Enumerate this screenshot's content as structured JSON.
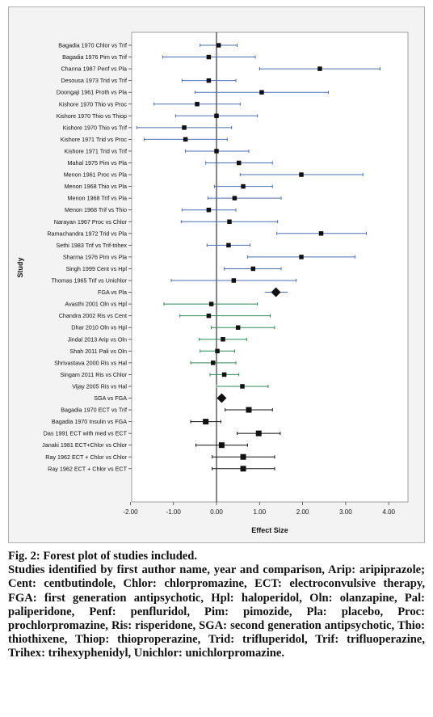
{
  "chart_data": {
    "type": "forest",
    "xlabel": "Effect Size",
    "ylabel": "Study",
    "xlim": [
      -2.2,
      4.45
    ],
    "xticks": [
      -2,
      -1,
      0,
      1,
      2,
      3,
      4
    ],
    "xtick_labels": [
      "-2.00",
      "-1.00",
      "0.00",
      "1.00",
      "2.00",
      "3.00",
      "4.00"
    ],
    "colors": {
      "fga": "#4a6fb5",
      "sga": "#2e8b57",
      "ect": "#111111",
      "marker": "#111111"
    },
    "studies": [
      {
        "label": "Bagadia 1970 Chlor vs Trif",
        "est": 0.05,
        "lo": -0.38,
        "hi": 0.48,
        "group": "fga"
      },
      {
        "label": "Bagadia 1976 Pim vs Trif",
        "est": -0.18,
        "lo": -1.25,
        "hi": 0.9,
        "group": "fga"
      },
      {
        "label": "Channa 1987 Penf vs Pla",
        "est": 2.4,
        "lo": 1.0,
        "hi": 3.8,
        "group": "fga"
      },
      {
        "label": "Desousa 1973 Trid vs Trif",
        "est": -0.18,
        "lo": -0.8,
        "hi": 0.45,
        "group": "fga"
      },
      {
        "label": "Doongaji 1961 Proth vs Pla",
        "est": 1.05,
        "lo": -0.5,
        "hi": 2.6,
        "group": "fga"
      },
      {
        "label": "Kishore 1970 Thio vs Proc",
        "est": -0.45,
        "lo": -1.45,
        "hi": 0.55,
        "group": "fga"
      },
      {
        "label": "Kishore 1970 Thio vs Thiop",
        "est": 0.0,
        "lo": -0.95,
        "hi": 0.95,
        "group": "fga"
      },
      {
        "label": "Kishore 1970 Thio vs Trif",
        "est": -0.75,
        "lo": -1.85,
        "hi": 0.35,
        "group": "fga"
      },
      {
        "label": "Kishore 1971 Trid vs Proc",
        "est": -0.72,
        "lo": -1.68,
        "hi": 0.25,
        "group": "fga"
      },
      {
        "label": "Kishore 1971 Trid vs Trif",
        "est": 0.0,
        "lo": -0.72,
        "hi": 0.75,
        "group": "fga"
      },
      {
        "label": "Mahal 1975 Pim vs Pla",
        "est": 0.52,
        "lo": -0.25,
        "hi": 1.3,
        "group": "fga"
      },
      {
        "label": "Menon 1961 Proc vs Pla",
        "est": 1.97,
        "lo": 0.55,
        "hi": 3.4,
        "group": "fga"
      },
      {
        "label": "Menon 1968 Thio vs Pla",
        "est": 0.62,
        "lo": -0.05,
        "hi": 1.3,
        "group": "fga"
      },
      {
        "label": "Menon 1968 Trif vs Pla",
        "est": 0.42,
        "lo": -0.2,
        "hi": 1.5,
        "group": "fga"
      },
      {
        "label": "Menon 1968 Trif vs Thio",
        "est": -0.18,
        "lo": -0.8,
        "hi": 0.45,
        "group": "fga"
      },
      {
        "label": "Narayan 1967 Proc vs Chlor",
        "est": 0.3,
        "lo": -0.82,
        "hi": 1.42,
        "group": "fga"
      },
      {
        "label": "Ramachandra 1972 Trid vs Pla",
        "est": 2.43,
        "lo": 1.4,
        "hi": 3.48,
        "group": "fga"
      },
      {
        "label": "Sethi 1983 Trif vs Trif-trihex",
        "est": 0.28,
        "lo": -0.22,
        "hi": 0.78,
        "group": "fga"
      },
      {
        "label": "Sharma 1976 Pim vs Pla",
        "est": 1.97,
        "lo": 0.72,
        "hi": 3.22,
        "group": "fga"
      },
      {
        "label": "Singh 1999 Cent vs Hpl",
        "est": 0.85,
        "lo": 0.18,
        "hi": 1.5,
        "group": "fga"
      },
      {
        "label": "Thomas 1965 Trif vs Unichlor",
        "est": 0.4,
        "lo": -1.05,
        "hi": 1.85,
        "group": "fga"
      },
      {
        "label": "FGA vs Pla",
        "est": 1.38,
        "lo": 1.12,
        "hi": 1.65,
        "group": "fga",
        "pooled": true
      },
      {
        "label": "Avasthi 2001 Oln vs Hpl",
        "est": -0.12,
        "lo": -1.22,
        "hi": 0.95,
        "group": "sga"
      },
      {
        "label": "Chandra 2002 Ris vs Cent",
        "est": -0.18,
        "lo": -0.85,
        "hi": 1.25,
        "group": "sga"
      },
      {
        "label": "Dhar 2010 Oln vs Hpl",
        "est": 0.5,
        "lo": -0.12,
        "hi": 1.35,
        "group": "sga"
      },
      {
        "label": "Jindal 2013 Arip vs Oln",
        "est": 0.15,
        "lo": -0.4,
        "hi": 0.7,
        "group": "sga"
      },
      {
        "label": "Shah 2011 Pali vs Oln",
        "est": 0.02,
        "lo": -0.38,
        "hi": 0.42,
        "group": "sga"
      },
      {
        "label": "Shrivastava 2000 Ris vs Hal",
        "est": -0.08,
        "lo": -0.6,
        "hi": 0.45,
        "group": "sga"
      },
      {
        "label": "Singam 2011 Ris vs Chlor",
        "est": 0.18,
        "lo": -0.15,
        "hi": 0.52,
        "group": "sga"
      },
      {
        "label": "Vijay 2005 Ris vs Hal",
        "est": 0.6,
        "lo": 0.0,
        "hi": 1.2,
        "group": "sga"
      },
      {
        "label": "SGA vs FGA",
        "est": 0.12,
        "lo": 0.02,
        "hi": 0.22,
        "group": "sga",
        "pooled": true
      },
      {
        "label": "Bagadia 1970 ECT vs Trif",
        "est": 0.75,
        "lo": 0.2,
        "hi": 1.3,
        "group": "ect"
      },
      {
        "label": "Bagadia 1970 Insulin vs FGA",
        "est": -0.25,
        "lo": -0.6,
        "hi": 0.1,
        "group": "ect"
      },
      {
        "label": "Das 1991 ECT with med vs ECT",
        "est": 0.98,
        "lo": 0.48,
        "hi": 1.48,
        "group": "ect"
      },
      {
        "label": "Janaki 1981 ECT+Chlor vs Chlor",
        "est": 0.12,
        "lo": -0.48,
        "hi": 0.72,
        "group": "ect"
      },
      {
        "label": "Ray 1962 ECT + Chlor vs Chlor",
        "est": 0.62,
        "lo": -0.1,
        "hi": 1.35,
        "group": "ect"
      },
      {
        "label": "Ray 1962 ECT + Chlor vs ECT",
        "est": 0.62,
        "lo": -0.1,
        "hi": 1.35,
        "group": "ect"
      }
    ]
  },
  "caption": {
    "figure_line": "Fig. 2: Forest plot of studies included.",
    "description": "Studies identified by first author name, year and comparison, Arip: aripiprazole; Cent: centbutindole, Chlor: chlorpromazine, ECT: electroconvulsive therapy, FGA: first generation antipsychotic, Hpl: haloperidol, Oln: olanzapine, Pal: paliperidone, Penf: penfluridol, Pim: pimozide, Pla: placebo, Proc: prochlorpromazine, Ris: risperidone, SGA: second generation antipsychotic, Thio: thiothixene, Thiop: thioproperazine, Trid: trifluperidol, Trif: trifluoperazine, Trihex: trihexyphenidyl, Unichlor: unichlorpromazine."
  }
}
